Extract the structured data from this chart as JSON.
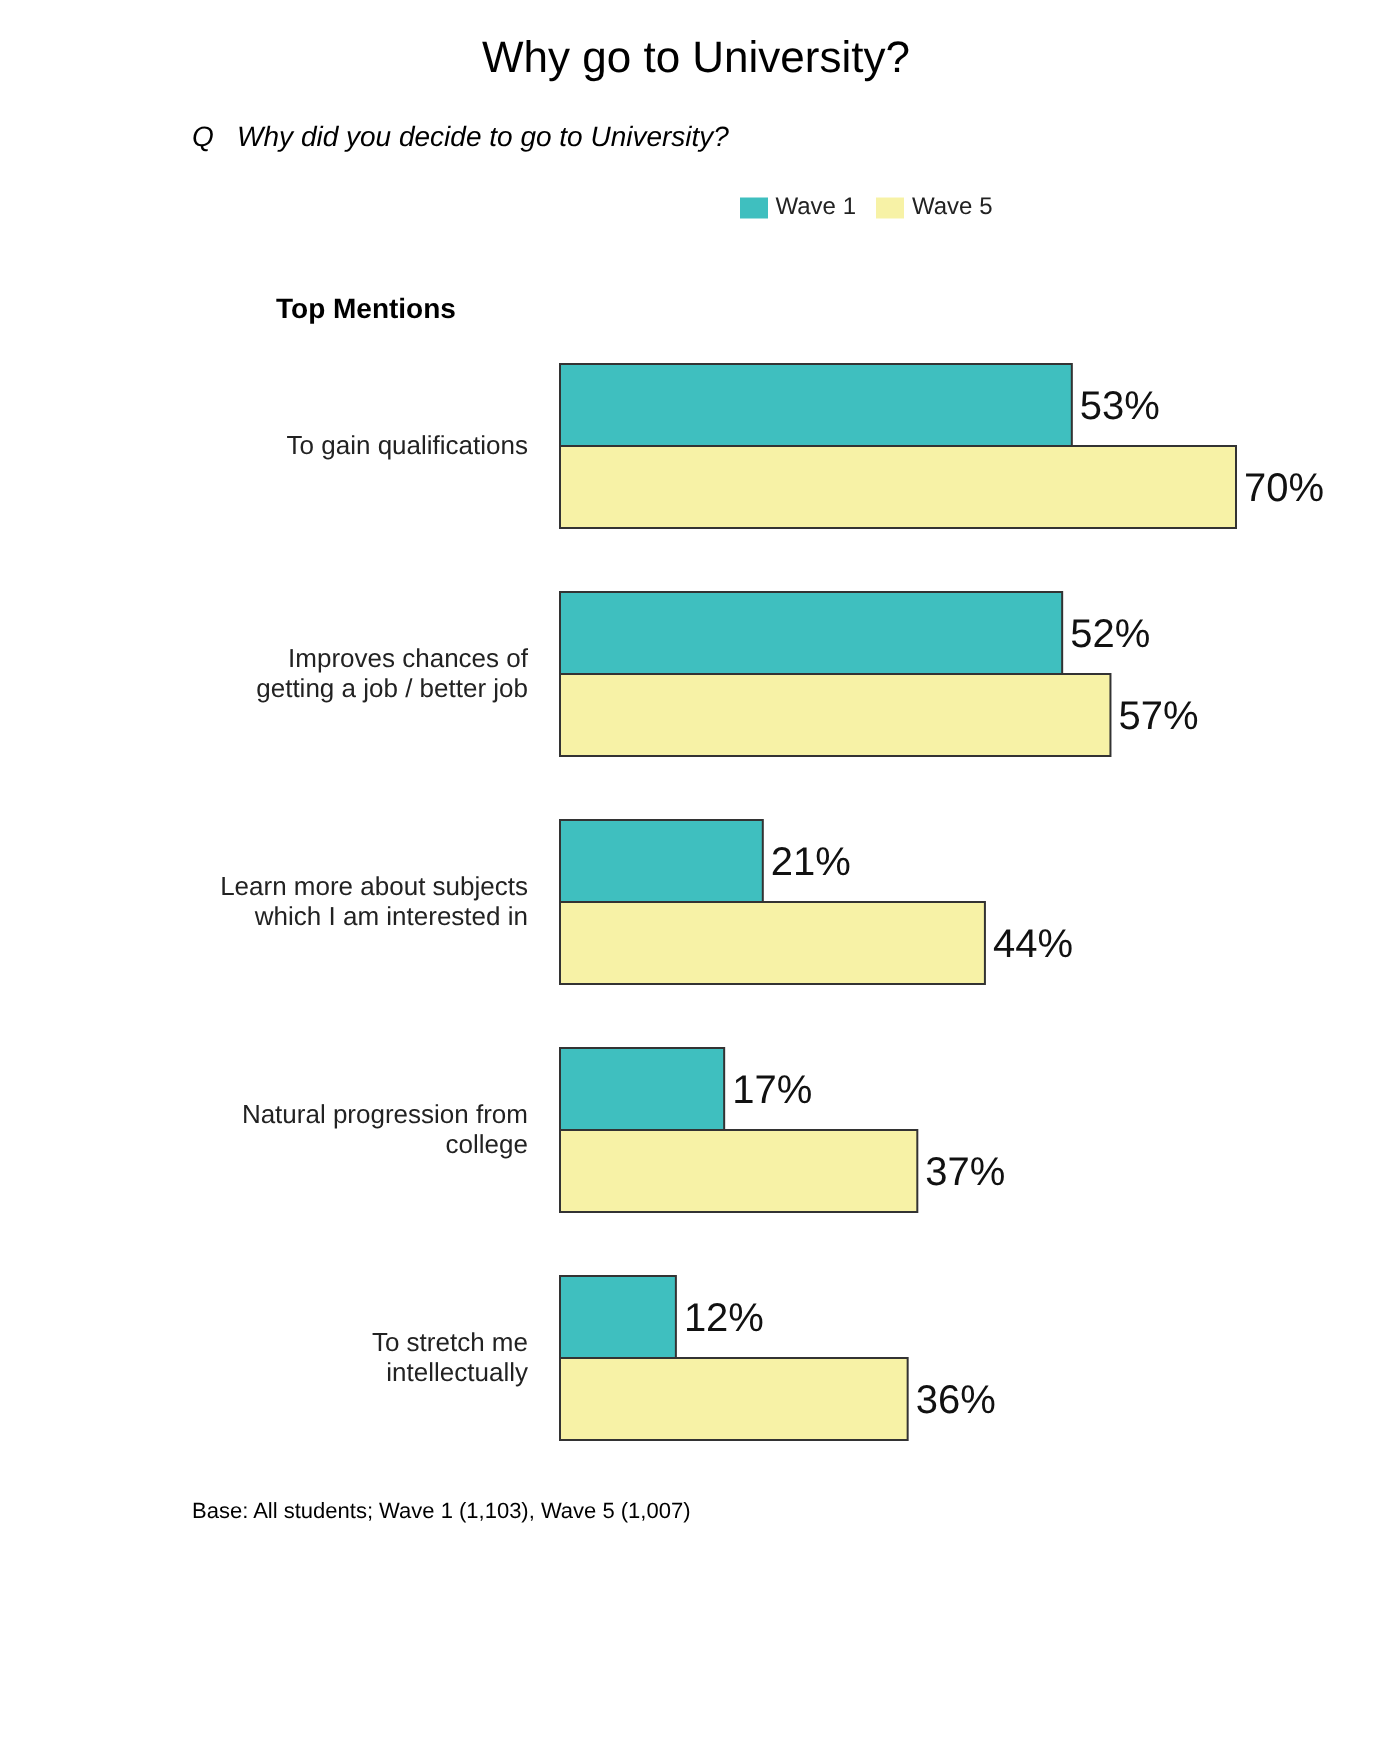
{
  "chart_data": {
    "type": "bar",
    "orientation": "horizontal",
    "title": "Why go to University?",
    "subtitle": "Q   Why did you decide to go to University?",
    "categories": [
      "To gain qualifications",
      "Improves chances of getting a job / better job",
      "Learn more about subjects which I am interested in",
      "Natural progression from college",
      "To stretch me intellectually"
    ],
    "series": [
      {
        "name": "Wave 1",
        "color": "#3fbfbf",
        "values": [
          53,
          52,
          21,
          17,
          12
        ],
        "value_labels": [
          "53%",
          "52%",
          "21%",
          "17%",
          "12%"
        ]
      },
      {
        "name": "Wave 5",
        "color": "#f7f2a6",
        "values": [
          70,
          57,
          44,
          37,
          36
        ],
        "value_labels": [
          "70%",
          "57%",
          "44%",
          "37%",
          "36%"
        ]
      }
    ],
    "legend": "top",
    "tick_labels": "y",
    "annotations": [
      "Top Mentions",
      "Base:  All students; Wave 1 (1,103), Wave 5 (1,007)"
    ]
  }
}
